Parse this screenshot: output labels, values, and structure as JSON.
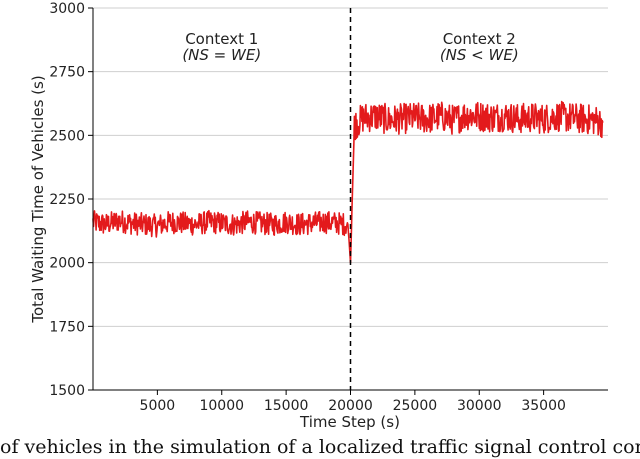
{
  "chart_data": {
    "type": "line",
    "xlabel": "Time Step (s)",
    "ylabel": "Total Waiting Time of Vehicles (s)",
    "xlim": [
      0,
      40000
    ],
    "ylim": [
      1500,
      3000
    ],
    "xticks": [
      5000,
      10000,
      15000,
      20000,
      25000,
      30000,
      35000
    ],
    "yticks": [
      1500,
      1750,
      2000,
      2250,
      2500,
      2750,
      3000
    ],
    "grid": "horizontal",
    "series": [
      {
        "color": "#e31a1c",
        "x": [
          0,
          1000,
          2000,
          3000,
          4000,
          5000,
          6000,
          7000,
          8000,
          9000,
          10000,
          11000,
          12000,
          13000,
          14000,
          15000,
          16000,
          17000,
          18000,
          19000,
          19800,
          20000,
          20300,
          21000,
          22000,
          23000,
          24000,
          25000,
          26000,
          27000,
          28000,
          29000,
          30000,
          31000,
          32000,
          33000,
          34000,
          35000,
          36000,
          37000,
          38000,
          39000,
          39600
        ],
        "y": [
          2160,
          2150,
          2165,
          2155,
          2150,
          2145,
          2160,
          2155,
          2150,
          2160,
          2155,
          2150,
          2160,
          2155,
          2150,
          2160,
          2150,
          2155,
          2160,
          2155,
          2150,
          2000,
          2540,
          2570,
          2575,
          2560,
          2565,
          2570,
          2565,
          2575,
          2560,
          2580,
          2575,
          2570,
          2575,
          2565,
          2570,
          2565,
          2575,
          2570,
          2565,
          2560,
          2550
        ]
      }
    ],
    "vline": {
      "x": 20000,
      "style": "dashed"
    },
    "annotations": [
      {
        "line1": "Context 1",
        "line2": "(NS = WE)",
        "x": 10000
      },
      {
        "line1": "Context 2",
        "line2": "(NS < WE)",
        "x": 30000
      }
    ]
  },
  "caption": "of vehicles in the simulation of a localized traffic signal control context"
}
